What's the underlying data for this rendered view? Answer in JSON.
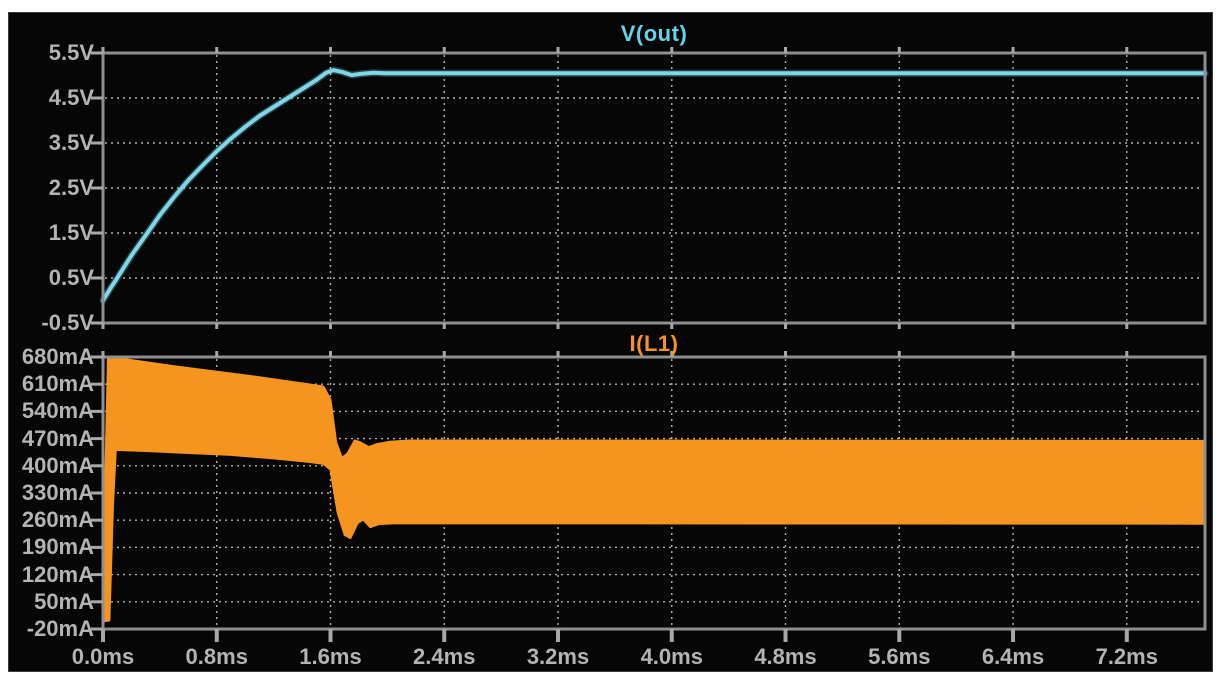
{
  "window": {
    "background": "#ffffff",
    "panel_background": "#060606"
  },
  "colors": {
    "grid": "#d0d0d0",
    "pane_border": "#8f8f8f",
    "tick": "#a8a8a8",
    "axis_label": "#b4b4b4",
    "vout_trace": "#7fd6e8",
    "vout_title": "#66d2e6",
    "il1_trace": "#f5941f",
    "il1_title": "#f5941f"
  },
  "x_axis": {
    "unit": "ms",
    "xlim": [
      0,
      7.75
    ],
    "ticks": [
      {
        "t": 0.0,
        "label": "0.0ms"
      },
      {
        "t": 0.8,
        "label": "0.8ms"
      },
      {
        "t": 1.6,
        "label": "1.6ms"
      },
      {
        "t": 2.4,
        "label": "2.4ms"
      },
      {
        "t": 3.2,
        "label": "3.2ms"
      },
      {
        "t": 4.0,
        "label": "4.0ms"
      },
      {
        "t": 4.8,
        "label": "4.8ms"
      },
      {
        "t": 5.6,
        "label": "5.6ms"
      },
      {
        "t": 6.4,
        "label": "6.4ms"
      },
      {
        "t": 7.2,
        "label": "7.2ms"
      }
    ]
  },
  "chart_data": [
    {
      "type": "line",
      "title": "V(out)",
      "unit": "V",
      "ylim": [
        -0.5,
        5.5
      ],
      "grid": true,
      "yticks": [
        {
          "v": 5.5,
          "label": "5.5V"
        },
        {
          "v": 4.5,
          "label": "4.5V"
        },
        {
          "v": 3.5,
          "label": "3.5V"
        },
        {
          "v": 2.5,
          "label": "2.5V"
        },
        {
          "v": 1.5,
          "label": "1.5V"
        },
        {
          "v": 0.5,
          "label": "0.5V"
        },
        {
          "v": -0.5,
          "label": "-0.5V"
        }
      ],
      "points": [
        [
          0.0,
          0.0
        ],
        [
          0.05,
          0.26
        ],
        [
          0.1,
          0.5
        ],
        [
          0.2,
          1.0
        ],
        [
          0.3,
          1.45
        ],
        [
          0.4,
          1.9
        ],
        [
          0.5,
          2.3
        ],
        [
          0.6,
          2.67
        ],
        [
          0.7,
          3.0
        ],
        [
          0.8,
          3.32
        ],
        [
          0.9,
          3.6
        ],
        [
          1.0,
          3.86
        ],
        [
          1.1,
          4.1
        ],
        [
          1.2,
          4.3
        ],
        [
          1.3,
          4.5
        ],
        [
          1.4,
          4.7
        ],
        [
          1.5,
          4.9
        ],
        [
          1.57,
          5.06
        ],
        [
          1.62,
          5.12
        ],
        [
          1.68,
          5.08
        ],
        [
          1.75,
          5.01
        ],
        [
          1.82,
          5.04
        ],
        [
          1.9,
          5.06
        ],
        [
          2.0,
          5.05
        ],
        [
          7.75,
          5.05
        ]
      ]
    },
    {
      "type": "area",
      "title": "I(L1)",
      "unit": "mA",
      "ylim": [
        -20,
        680
      ],
      "grid": true,
      "yticks": [
        {
          "v": 680,
          "label": "680mA"
        },
        {
          "v": 610,
          "label": "610mA"
        },
        {
          "v": 540,
          "label": "540mA"
        },
        {
          "v": 470,
          "label": "470mA"
        },
        {
          "v": 400,
          "label": "400mA"
        },
        {
          "v": 330,
          "label": "330mA"
        },
        {
          "v": 260,
          "label": "260mA"
        },
        {
          "v": 190,
          "label": "190mA"
        },
        {
          "v": 120,
          "label": "120mA"
        },
        {
          "v": 50,
          "label": "50mA"
        },
        {
          "v": -20,
          "label": "-20mA"
        }
      ],
      "band": {
        "upper": [
          [
            0.0,
            0
          ],
          [
            0.015,
            340
          ],
          [
            0.035,
            680
          ],
          [
            0.2,
            672
          ],
          [
            0.5,
            656
          ],
          [
            0.8,
            642
          ],
          [
            1.1,
            628
          ],
          [
            1.4,
            612
          ],
          [
            1.55,
            604
          ],
          [
            1.6,
            570
          ],
          [
            1.64,
            460
          ],
          [
            1.68,
            420
          ],
          [
            1.72,
            432
          ],
          [
            1.77,
            465
          ],
          [
            1.81,
            460
          ],
          [
            1.87,
            448
          ],
          [
            1.93,
            456
          ],
          [
            2.02,
            462
          ],
          [
            2.15,
            465
          ],
          [
            7.75,
            464
          ]
        ],
        "lower": [
          [
            0.0,
            0
          ],
          [
            0.045,
            2
          ],
          [
            0.07,
            300
          ],
          [
            0.09,
            441
          ],
          [
            0.3,
            438
          ],
          [
            0.6,
            433
          ],
          [
            0.9,
            428
          ],
          [
            1.2,
            419
          ],
          [
            1.45,
            410
          ],
          [
            1.55,
            405
          ],
          [
            1.6,
            390
          ],
          [
            1.65,
            280
          ],
          [
            1.7,
            222
          ],
          [
            1.74,
            214
          ],
          [
            1.79,
            252
          ],
          [
            1.83,
            262
          ],
          [
            1.88,
            242
          ],
          [
            1.94,
            250
          ],
          [
            2.05,
            252
          ],
          [
            7.75,
            251
          ]
        ]
      }
    }
  ]
}
